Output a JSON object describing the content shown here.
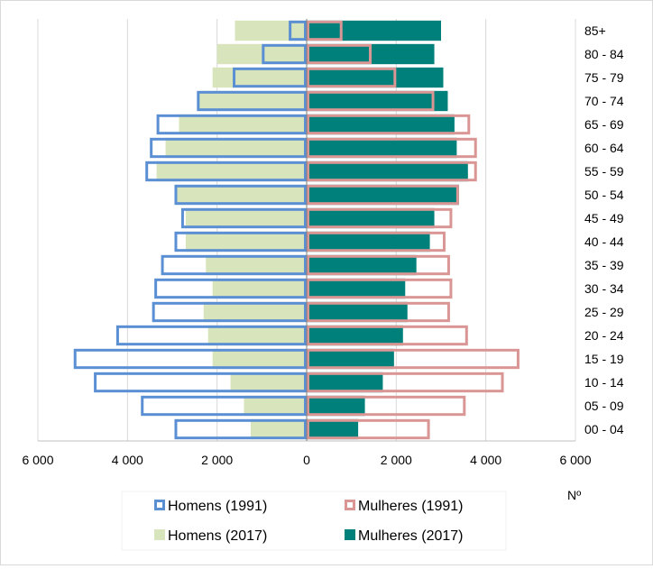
{
  "chart_data": {
    "type": "bar",
    "orientation": "horizontal",
    "variant": "population-pyramid",
    "title": "",
    "xlabel": "Nº",
    "ylabel": "",
    "xlim": [
      -6000,
      6000
    ],
    "x_ticks": [
      -6000,
      -4000,
      -2000,
      0,
      2000,
      4000,
      6000
    ],
    "x_tick_labels": [
      "6 000",
      "4 000",
      "2 000",
      "0",
      "2 000",
      "4 000",
      "6 000"
    ],
    "grid": "vertical",
    "legend_position": "bottom",
    "categories": [
      "00 - 04",
      "05 - 09",
      "10 - 14",
      "15 - 19",
      "20 - 24",
      "25 - 29",
      "30 - 34",
      "35 - 39",
      "40 - 44",
      "45 - 49",
      "50 - 54",
      "55 - 59",
      "60 - 64",
      "65 - 69",
      "70 - 74",
      "75 - 79",
      "80 - 84",
      "85+"
    ],
    "series": [
      {
        "name": "Homens (2017)",
        "side": "left",
        "style": "fill",
        "color": "#d8e4bc",
        "values": [
          1250,
          1400,
          1700,
          2100,
          2200,
          2300,
          2100,
          2250,
          2700,
          2700,
          2950,
          3350,
          3150,
          2850,
          2400,
          2100,
          2000,
          1600
        ]
      },
      {
        "name": "Mulheres (2017)",
        "side": "right",
        "style": "fill",
        "color": "#00807a",
        "values": [
          1150,
          1300,
          1700,
          1950,
          2150,
          2250,
          2200,
          2450,
          2750,
          2850,
          3400,
          3600,
          3350,
          3300,
          3150,
          3050,
          2850,
          3000
        ]
      },
      {
        "name": "Homens (1991)",
        "side": "left",
        "style": "outline",
        "color": "#5b8fd3",
        "values": [
          2950,
          3700,
          4750,
          5200,
          4250,
          3450,
          3400,
          3250,
          2950,
          2800,
          2950,
          3600,
          3500,
          3350,
          2450,
          1650,
          1000,
          400
        ]
      },
      {
        "name": "Mulheres (1991)",
        "side": "right",
        "style": "outline",
        "color": "#d99694",
        "values": [
          2750,
          3550,
          4400,
          4750,
          3600,
          3200,
          3250,
          3200,
          3100,
          3250,
          3400,
          3800,
          3800,
          3650,
          2850,
          2000,
          1450,
          800
        ]
      }
    ]
  }
}
